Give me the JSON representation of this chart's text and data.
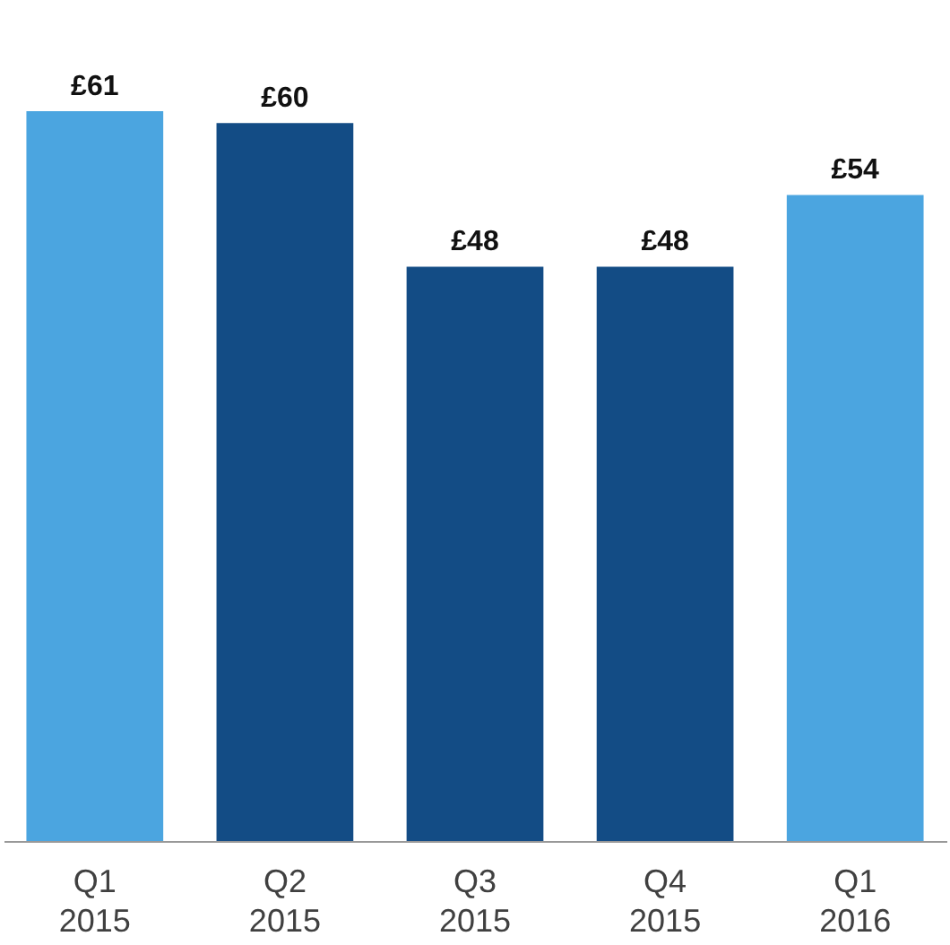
{
  "chart_data": {
    "type": "bar",
    "categories": [
      "Q1 2015",
      "Q2 2015",
      "Q3 2015",
      "Q4 2015",
      "Q1 2016"
    ],
    "values": [
      61,
      60,
      48,
      48,
      54
    ],
    "colors": [
      "#4ba5e0",
      "#134c85",
      "#134c85",
      "#134c85",
      "#4ba5e0"
    ],
    "value_labels": [
      "£61",
      "£60",
      "£48",
      "£48",
      "£54"
    ]
  }
}
